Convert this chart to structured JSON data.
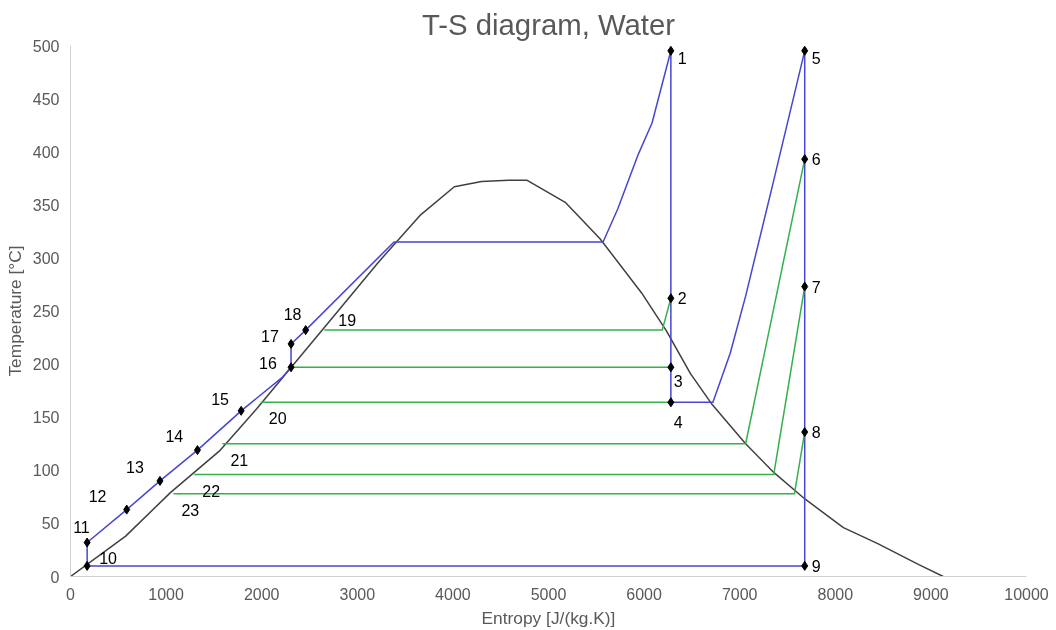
{
  "chart_data": {
    "type": "line",
    "title": "T-S diagram, Water",
    "xlabel": "Entropy [J/(kg.K)]",
    "ylabel": "Temperature [°C]",
    "xlim": [
      0,
      10000
    ],
    "xticks": [
      0,
      1000,
      2000,
      3000,
      4000,
      5000,
      6000,
      7000,
      8000,
      9000,
      10000
    ],
    "ylim": [
      0,
      500
    ],
    "yticks": [
      0,
      50,
      100,
      150,
      200,
      250,
      300,
      350,
      400,
      450,
      500
    ],
    "grid": false,
    "series": [
      {
        "color": "#404040",
        "x": [
          0,
          577,
          1045,
          1556,
          1948,
          2318,
          2753,
          3221,
          3656,
          4015,
          4300,
          4581,
          4777,
          5180,
          5539,
          5974,
          6235,
          6485,
          6703,
          7062,
          7356,
          7682,
          8085,
          8444,
          8879,
          9129
        ],
        "values": [
          0,
          38,
          79,
          118,
          158,
          198,
          245,
          296,
          340,
          367,
          372,
          373,
          373,
          352,
          318,
          267,
          231,
          191,
          163,
          125,
          98,
          73,
          46,
          31,
          11,
          0
        ]
      },
      {
        "color": "#4646d2",
        "x": [
          174,
          7680
        ],
        "values": [
          10,
          10
        ]
      },
      {
        "color": "#4646d2",
        "x": [
          174,
          174,
          588,
          936,
          1328,
          1785,
          2209,
          2307,
          2307,
          2460,
          3384,
          5571,
          5724,
          5941,
          6083,
          6280
        ],
        "values": [
          10,
          32,
          63,
          90,
          119,
          156,
          187,
          197,
          219,
          232,
          315,
          315,
          346,
          398,
          427,
          495
        ]
      },
      {
        "color": "#4646d2",
        "x": [
          6280,
          6280,
          6720,
          6900,
          7062,
          7356,
          7680,
          7680
        ],
        "values": [
          495,
          164,
          164,
          210,
          264,
          373,
          495,
          10
        ]
      },
      {
        "color": "#33b24a",
        "x": [
          2655,
          6190,
          6280
        ],
        "values": [
          232,
          232,
          262
        ]
      },
      {
        "color": "#33b24a",
        "x": [
          2307,
          6280
        ],
        "values": [
          197,
          197
        ]
      },
      {
        "color": "#33b24a",
        "x": [
          1990,
          6280
        ],
        "values": [
          164,
          164
        ]
      },
      {
        "color": "#33b24a",
        "x": [
          1589,
          7062,
          7680
        ],
        "values": [
          125,
          125,
          393
        ]
      },
      {
        "color": "#33b24a",
        "x": [
          1295,
          7356,
          7680
        ],
        "values": [
          96,
          96,
          273
        ]
      },
      {
        "color": "#33b24a",
        "x": [
          1077,
          7573,
          7680
        ],
        "values": [
          78,
          78,
          136
        ]
      },
      {
        "type": "scatter",
        "marker": "diamond",
        "color": "#000000",
        "x": [
          6280,
          6280,
          6280,
          6280,
          7680,
          7680,
          7680,
          7680,
          7680,
          174,
          174,
          588,
          936,
          1328,
          1785,
          2307,
          2307,
          2460
        ],
        "values": [
          495,
          262,
          197,
          164,
          495,
          393,
          273,
          136,
          10,
          10,
          32,
          63,
          90,
          119,
          156,
          197,
          219,
          232
        ]
      }
    ],
    "annotations": [
      {
        "text": "1",
        "x": 6280,
        "y": 495
      },
      {
        "text": "2",
        "x": 6280,
        "y": 262
      },
      {
        "text": "3",
        "x": 6280,
        "y": 197
      },
      {
        "text": "4",
        "x": 6280,
        "y": 164
      },
      {
        "text": "5",
        "x": 7680,
        "y": 495
      },
      {
        "text": "6",
        "x": 7680,
        "y": 393
      },
      {
        "text": "7",
        "x": 7680,
        "y": 273
      },
      {
        "text": "8",
        "x": 7680,
        "y": 136
      },
      {
        "text": "9",
        "x": 7680,
        "y": 10
      },
      {
        "text": "10",
        "x": 174,
        "y": 10
      },
      {
        "text": "11",
        "x": 174,
        "y": 32
      },
      {
        "text": "12",
        "x": 588,
        "y": 63
      },
      {
        "text": "13",
        "x": 936,
        "y": 90
      },
      {
        "text": "14",
        "x": 1328,
        "y": 119
      },
      {
        "text": "15",
        "x": 1785,
        "y": 156
      },
      {
        "text": "16",
        "x": 2307,
        "y": 197
      },
      {
        "text": "17",
        "x": 2307,
        "y": 219
      },
      {
        "text": "18",
        "x": 2460,
        "y": 232
      },
      {
        "text": "19",
        "x": 2655,
        "y": 232
      },
      {
        "text": "20",
        "x": 1990,
        "y": 164
      },
      {
        "text": "21",
        "x": 1589,
        "y": 125
      },
      {
        "text": "22",
        "x": 1295,
        "y": 96
      },
      {
        "text": "23",
        "x": 1077,
        "y": 78
      }
    ]
  }
}
